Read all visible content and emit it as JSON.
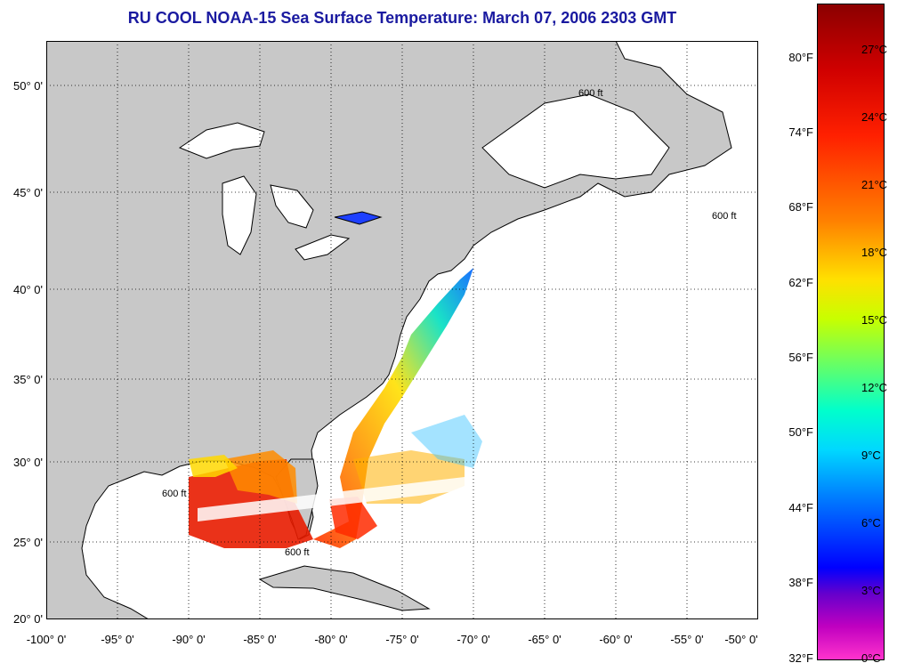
{
  "title": "RU COOL  NOAA-15  Sea Surface Temperature:  March 07, 2006 2303 GMT",
  "map": {
    "lon_range": [
      -100,
      -50
    ],
    "lat_range": [
      20,
      52
    ],
    "latitude_labels": [
      "50° 0'",
      "45° 0'",
      "40° 0'",
      "35° 0'",
      "30° 0'",
      "25° 0'",
      "20° 0'"
    ],
    "longitude_labels": [
      "-100° 0'",
      "-95° 0'",
      "-90° 0'",
      "-85° 0'",
      "-80° 0'",
      "-75° 0'",
      "-70° 0'",
      "-65° 0'",
      "-60° 0'",
      "-55° 0'",
      "-50° 0'"
    ],
    "isobath_label": "600 ft",
    "colors": {
      "land": "#c8c8c8",
      "ocean": "#ffffff",
      "grid": "#000000"
    }
  },
  "colorbar": {
    "fahrenheit_labels": [
      "80°F",
      "74°F",
      "68°F",
      "62°F",
      "56°F",
      "50°F",
      "44°F",
      "38°F",
      "32°F"
    ],
    "celsius_labels": [
      "27°C",
      "24°C",
      "21°C",
      "18°C",
      "15°C",
      "12°C",
      "9°C",
      "6°C",
      "3°C",
      "0°C"
    ],
    "colors": [
      "#8b0000",
      "#ff2000",
      "#ff8000",
      "#ffe000",
      "#66ff66",
      "#00ffcc",
      "#0080ff",
      "#0000ff",
      "#c000c0",
      "#ff33cc"
    ]
  }
}
